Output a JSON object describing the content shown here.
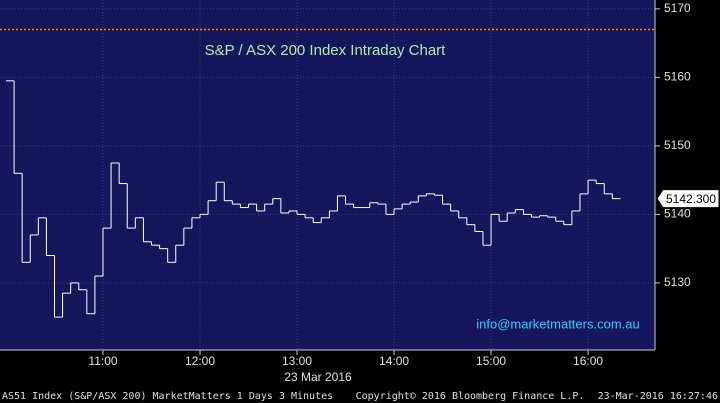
{
  "chart_data": {
    "type": "line",
    "style": "step",
    "title": "S&P / ASX 200 Index Intraday Chart",
    "x_label": "23 Mar 2016",
    "annotation": "info@marketmatters.com.au",
    "footer": [
      "AS51 Index (S&P/ASX 200) MarketMatters 1 Days 3 Minutes",
      "Copyright© 2016 Bloomberg Finance L.P.",
      "23-Mar-2016 16:27:46"
    ],
    "color": "#ffffff",
    "grid": true,
    "reference_line": {
      "value": 5167,
      "color": "#ff8c00"
    },
    "last_value": {
      "value": 5142.3,
      "label": "5142.300"
    },
    "x": [
      600,
      605,
      610,
      615,
      620,
      625,
      630,
      635,
      640,
      645,
      650,
      655,
      660,
      665,
      670,
      675,
      680,
      685,
      690,
      695,
      700,
      705,
      710,
      715,
      720,
      725,
      730,
      735,
      740,
      745,
      750,
      755,
      760,
      765,
      770,
      775,
      780,
      785,
      790,
      795,
      800,
      805,
      810,
      815,
      820,
      825,
      830,
      835,
      840,
      845,
      850,
      855,
      860,
      865,
      870,
      875,
      880,
      885,
      890,
      895,
      900,
      905,
      910,
      915,
      920,
      925,
      930,
      935,
      940,
      945,
      950,
      955,
      960,
      965,
      970,
      975
    ],
    "values": [
      5159.5,
      5146,
      5133,
      5137,
      5139.5,
      5134,
      5125,
      5128.5,
      5130,
      5129,
      5125.5,
      5131,
      5138,
      5147.5,
      5144.5,
      5138,
      5139.5,
      5136,
      5135.5,
      5135,
      5133,
      5135.5,
      5138,
      5139.5,
      5140,
      5142,
      5144.7,
      5142,
      5141.5,
      5141,
      5141.5,
      5140.5,
      5141.5,
      5142.3,
      5140.2,
      5140.5,
      5140,
      5139.5,
      5138.8,
      5139.5,
      5140.5,
      5142.7,
      5141.5,
      5141,
      5141,
      5141.7,
      5141.5,
      5140,
      5140.8,
      5141.5,
      5141.8,
      5142.7,
      5143,
      5142.8,
      5141.5,
      5140.5,
      5139.5,
      5138.5,
      5137.5,
      5135.5,
      5140,
      5139,
      5140.2,
      5140.7,
      5140,
      5139.6,
      5139.8,
      5139.6,
      5139,
      5138.5,
      5140.5,
      5143,
      5145,
      5144.5,
      5143,
      5142.3
    ],
    "xlim": [
      596.3,
      1001.4
    ],
    "xticks": [
      {
        "value": 660,
        "label": "11:00"
      },
      {
        "value": 720,
        "label": "12:00"
      },
      {
        "value": 780,
        "label": "13:00"
      },
      {
        "value": 840,
        "label": "14:00"
      },
      {
        "value": 900,
        "label": "15:00"
      },
      {
        "value": 960,
        "label": "16:00"
      }
    ],
    "ylim": [
      5120.2,
      5171.3
    ],
    "yticks": [
      5130,
      5140,
      5150,
      5160,
      5170
    ]
  }
}
